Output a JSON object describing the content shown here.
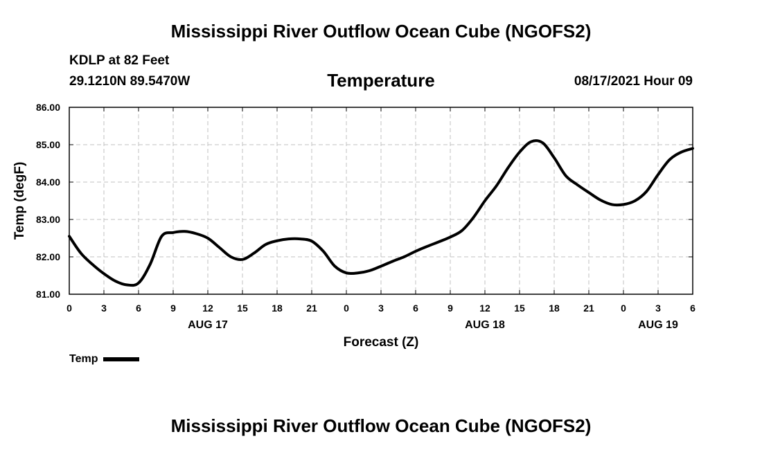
{
  "header": {
    "title": "Mississippi River Outflow Ocean Cube (NGOFS2)",
    "station": "KDLP at 82 Feet",
    "coords": "29.1210N  89.5470W",
    "chart_title": "Temperature",
    "date": "08/17/2021 Hour 09"
  },
  "footer": {
    "title": "Mississippi River Outflow Ocean Cube (NGOFS2)"
  },
  "legend": {
    "label": "Temp"
  },
  "colors": {
    "line": "#000000",
    "grid": "#c0c0c0"
  },
  "chart_data": {
    "type": "line",
    "title": "Temperature",
    "xlabel": "Forecast (Z)",
    "ylabel": "Temp (degF)",
    "xlim": [
      0,
      54
    ],
    "ylim": [
      81,
      86
    ],
    "grid": true,
    "x_ticks": [
      0,
      3,
      6,
      9,
      12,
      15,
      18,
      21,
      24,
      27,
      30,
      33,
      36,
      39,
      42,
      45,
      48,
      51,
      54
    ],
    "x_tick_labels": [
      "0",
      "3",
      "6",
      "9",
      "12",
      "15",
      "18",
      "21",
      "0",
      "3",
      "6",
      "9",
      "12",
      "15",
      "18",
      "21",
      "0",
      "3",
      "6"
    ],
    "y_ticks": [
      81,
      82,
      83,
      84,
      85,
      86
    ],
    "y_tick_labels": [
      "81.00",
      "82.00",
      "83.00",
      "84.00",
      "85.00",
      "86.00"
    ],
    "date_labels": [
      {
        "x": 12,
        "label": "AUG 17"
      },
      {
        "x": 36,
        "label": "AUG 18"
      },
      {
        "x": 51,
        "label": "AUG 19"
      }
    ],
    "series": [
      {
        "name": "Temp",
        "x": [
          0,
          1,
          2,
          3,
          4,
          5,
          6,
          7,
          8,
          9,
          10,
          11,
          12,
          13,
          14,
          15,
          16,
          17,
          18,
          19,
          20,
          21,
          22,
          23,
          24,
          25,
          26,
          27,
          28,
          29,
          30,
          31,
          32,
          33,
          34,
          35,
          36,
          37,
          38,
          39,
          40,
          41,
          42,
          43,
          44,
          45,
          46,
          47,
          48,
          49,
          50,
          51,
          52,
          53,
          54
        ],
        "values": [
          82.55,
          82.1,
          81.8,
          81.55,
          81.35,
          81.25,
          81.3,
          81.8,
          82.55,
          82.65,
          82.68,
          82.62,
          82.5,
          82.25,
          82.0,
          81.93,
          82.1,
          82.33,
          82.43,
          82.48,
          82.48,
          82.42,
          82.15,
          81.75,
          81.57,
          81.57,
          81.63,
          81.75,
          81.88,
          82.0,
          82.15,
          82.28,
          82.4,
          82.53,
          82.7,
          83.05,
          83.5,
          83.9,
          84.38,
          84.8,
          85.08,
          85.05,
          84.65,
          84.17,
          83.93,
          83.72,
          83.52,
          83.4,
          83.4,
          83.5,
          83.75,
          84.2,
          84.6,
          84.8,
          84.9
        ]
      }
    ]
  }
}
